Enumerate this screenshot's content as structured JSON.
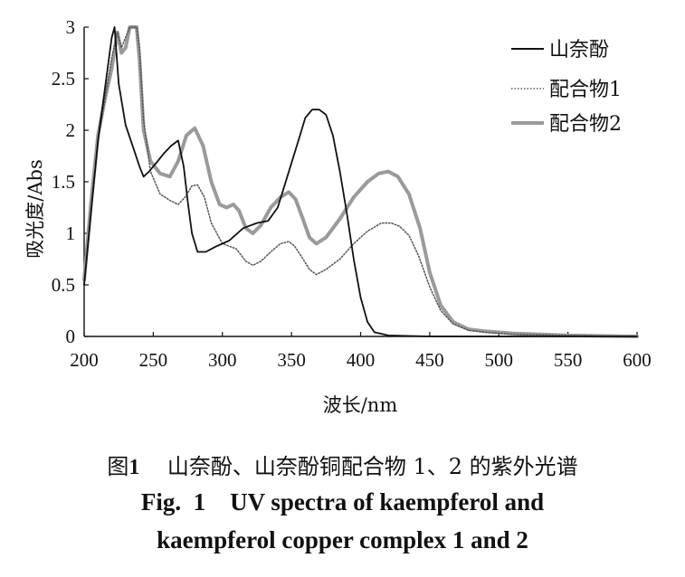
{
  "chart_data": {
    "type": "line",
    "xlabel": "波长/nm",
    "ylabel": "吸光度/Abs",
    "xlim": [
      200,
      600
    ],
    "ylim": [
      0,
      3
    ],
    "xticks": [
      "200",
      "250",
      "300",
      "350",
      "400",
      "450",
      "500",
      "550",
      "600"
    ],
    "yticks": [
      "0",
      "0.5",
      "1",
      "1.5",
      "2",
      "2.5",
      "3"
    ],
    "grid": false,
    "legend_position": "top-right",
    "series": [
      {
        "name": "山奈酚",
        "style": "solid",
        "color": "#111111",
        "points": [
          [
            200,
            0.5
          ],
          [
            205,
            1.2
          ],
          [
            210,
            1.9
          ],
          [
            215,
            2.4
          ],
          [
            220,
            2.9
          ],
          [
            222,
            3.0
          ],
          [
            225,
            2.45
          ],
          [
            230,
            2.05
          ],
          [
            235,
            1.85
          ],
          [
            240,
            1.65
          ],
          [
            243,
            1.55
          ],
          [
            247,
            1.6
          ],
          [
            252,
            1.68
          ],
          [
            258,
            1.78
          ],
          [
            263,
            1.85
          ],
          [
            268,
            1.9
          ],
          [
            272,
            1.65
          ],
          [
            275,
            1.3
          ],
          [
            278,
            1.0
          ],
          [
            282,
            0.82
          ],
          [
            288,
            0.82
          ],
          [
            295,
            0.87
          ],
          [
            305,
            0.93
          ],
          [
            315,
            1.05
          ],
          [
            325,
            1.1
          ],
          [
            333,
            1.12
          ],
          [
            340,
            1.25
          ],
          [
            347,
            1.55
          ],
          [
            355,
            1.9
          ],
          [
            360,
            2.12
          ],
          [
            365,
            2.2
          ],
          [
            370,
            2.2
          ],
          [
            375,
            2.15
          ],
          [
            380,
            1.95
          ],
          [
            385,
            1.6
          ],
          [
            390,
            1.2
          ],
          [
            395,
            0.75
          ],
          [
            400,
            0.38
          ],
          [
            405,
            0.14
          ],
          [
            410,
            0.04
          ],
          [
            420,
            0.01
          ],
          [
            450,
            0.0
          ],
          [
            600,
            0.0
          ]
        ]
      },
      {
        "name": "配合物1",
        "style": "dotted",
        "color": "#555555",
        "points": [
          [
            200,
            0.5
          ],
          [
            205,
            1.25
          ],
          [
            210,
            1.9
          ],
          [
            215,
            2.3
          ],
          [
            220,
            2.7
          ],
          [
            224,
            2.95
          ],
          [
            227,
            2.8
          ],
          [
            230,
            2.9
          ],
          [
            233,
            3.0
          ],
          [
            238,
            3.0
          ],
          [
            240,
            2.8
          ],
          [
            243,
            2.1
          ],
          [
            248,
            1.6
          ],
          [
            255,
            1.38
          ],
          [
            262,
            1.32
          ],
          [
            268,
            1.28
          ],
          [
            273,
            1.35
          ],
          [
            278,
            1.46
          ],
          [
            282,
            1.47
          ],
          [
            287,
            1.35
          ],
          [
            292,
            1.1
          ],
          [
            300,
            0.9
          ],
          [
            310,
            0.85
          ],
          [
            317,
            0.73
          ],
          [
            322,
            0.69
          ],
          [
            328,
            0.73
          ],
          [
            335,
            0.82
          ],
          [
            342,
            0.9
          ],
          [
            348,
            0.92
          ],
          [
            352,
            0.88
          ],
          [
            357,
            0.78
          ],
          [
            363,
            0.65
          ],
          [
            368,
            0.6
          ],
          [
            375,
            0.65
          ],
          [
            385,
            0.75
          ],
          [
            395,
            0.9
          ],
          [
            405,
            1.02
          ],
          [
            415,
            1.1
          ],
          [
            422,
            1.1
          ],
          [
            428,
            1.07
          ],
          [
            435,
            0.98
          ],
          [
            442,
            0.78
          ],
          [
            450,
            0.48
          ],
          [
            458,
            0.25
          ],
          [
            467,
            0.12
          ],
          [
            478,
            0.06
          ],
          [
            490,
            0.04
          ],
          [
            510,
            0.02
          ],
          [
            550,
            0.01
          ],
          [
            600,
            0.0
          ]
        ]
      },
      {
        "name": "配合物2",
        "style": "thick",
        "color": "#9a9a9a",
        "points": [
          [
            200,
            0.55
          ],
          [
            205,
            1.3
          ],
          [
            210,
            1.95
          ],
          [
            215,
            2.3
          ],
          [
            220,
            2.6
          ],
          [
            224,
            2.95
          ],
          [
            227,
            2.75
          ],
          [
            230,
            2.8
          ],
          [
            233,
            3.0
          ],
          [
            238,
            3.0
          ],
          [
            240,
            2.7
          ],
          [
            243,
            2.0
          ],
          [
            248,
            1.7
          ],
          [
            255,
            1.58
          ],
          [
            262,
            1.55
          ],
          [
            268,
            1.7
          ],
          [
            274,
            1.95
          ],
          [
            280,
            2.02
          ],
          [
            286,
            1.85
          ],
          [
            292,
            1.5
          ],
          [
            298,
            1.28
          ],
          [
            303,
            1.25
          ],
          [
            308,
            1.28
          ],
          [
            312,
            1.22
          ],
          [
            317,
            1.05
          ],
          [
            322,
            1.0
          ],
          [
            328,
            1.08
          ],
          [
            335,
            1.25
          ],
          [
            342,
            1.35
          ],
          [
            348,
            1.4
          ],
          [
            353,
            1.33
          ],
          [
            358,
            1.15
          ],
          [
            363,
            0.96
          ],
          [
            368,
            0.9
          ],
          [
            375,
            0.96
          ],
          [
            385,
            1.14
          ],
          [
            395,
            1.35
          ],
          [
            405,
            1.5
          ],
          [
            413,
            1.58
          ],
          [
            420,
            1.6
          ],
          [
            427,
            1.55
          ],
          [
            435,
            1.38
          ],
          [
            443,
            1.05
          ],
          [
            450,
            0.62
          ],
          [
            458,
            0.3
          ],
          [
            467,
            0.14
          ],
          [
            478,
            0.07
          ],
          [
            490,
            0.05
          ],
          [
            510,
            0.03
          ],
          [
            550,
            0.01
          ],
          [
            600,
            0.0
          ]
        ]
      }
    ]
  },
  "caption": {
    "cn_prefix": "图",
    "cn_number": "1",
    "cn_text": "山奈酚、山奈酚铜配合物 1、2 的紫外光谱",
    "en_line1": "Fig.  1    UV spectra of kaempferol and",
    "en_line2": "kaempferol copper complex 1 and 2"
  }
}
